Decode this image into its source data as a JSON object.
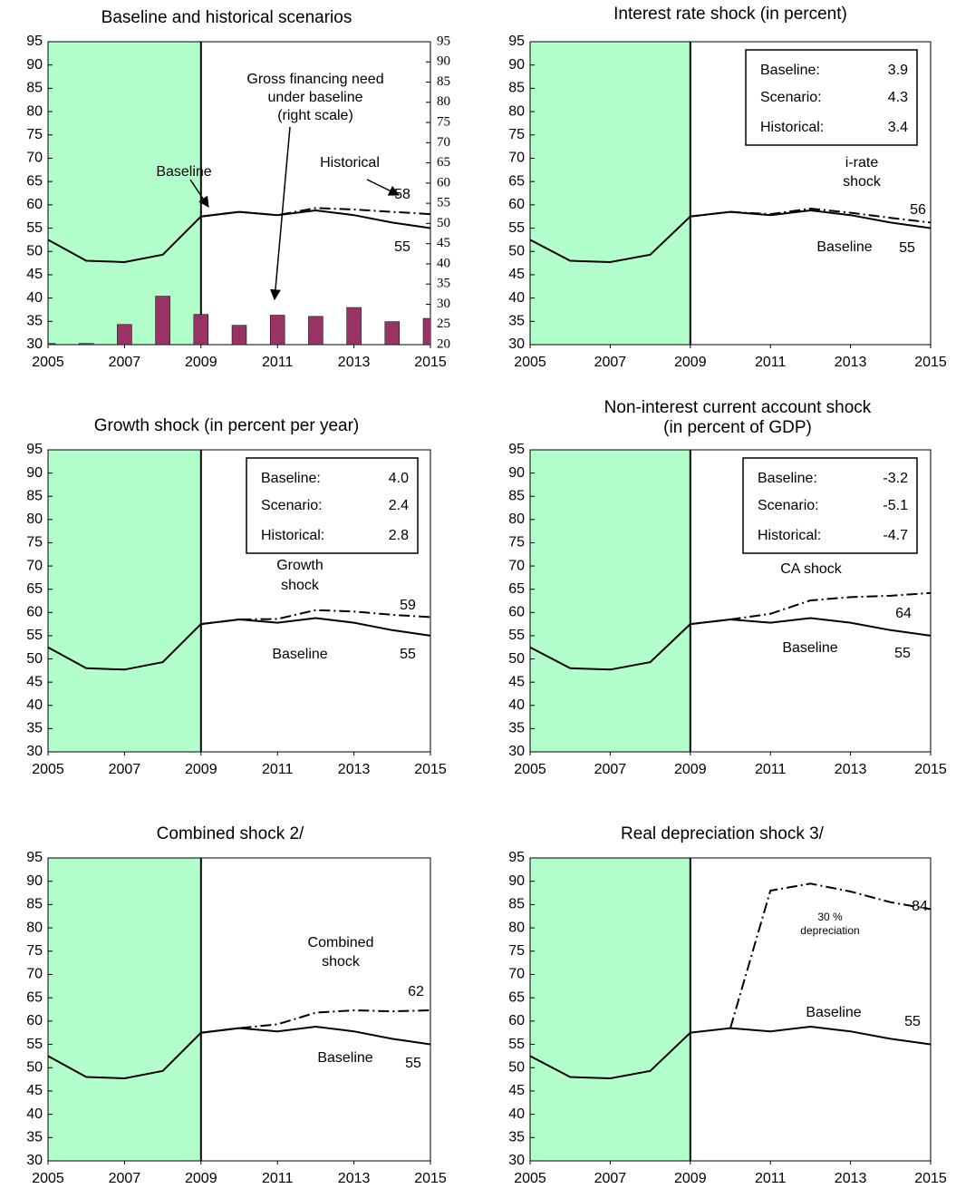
{
  "chart_data": [
    {
      "type": "line",
      "title": [
        "Baseline and historical scenarios"
      ],
      "x": [
        2005,
        2006,
        2007,
        2008,
        2009,
        2010,
        2011,
        2012,
        2013,
        2014,
        2015
      ],
      "xlim": [
        2005,
        2015
      ],
      "xticks": [
        2005,
        2007,
        2009,
        2011,
        2013,
        2015
      ],
      "ylim": [
        30,
        95
      ],
      "yticks": [
        30,
        35,
        40,
        45,
        50,
        55,
        60,
        65,
        70,
        75,
        80,
        85,
        90,
        95
      ],
      "y2lim": [
        20,
        95
      ],
      "y2ticks": [
        20,
        25,
        30,
        35,
        40,
        45,
        50,
        55,
        60,
        65,
        70,
        75,
        80,
        85,
        90,
        95
      ],
      "shaded_range": [
        2005,
        2009
      ],
      "shade_color": "#b3ffcc",
      "series": [
        {
          "type": "bar",
          "axis": "y2",
          "color": "#993366",
          "values": [
            20.3,
            20.3,
            25,
            32,
            27.5,
            24.8,
            27.3,
            27,
            29.2,
            25.7,
            26.5
          ]
        },
        {
          "color": "#000000",
          "style": "solid",
          "values": [
            52.5,
            48,
            47.7,
            49.3,
            57.5,
            58.5,
            57.8,
            58.8,
            57.8,
            56.2,
            55
          ]
        },
        {
          "color": "#000000",
          "style": "dashdot",
          "values": [
            null,
            null,
            null,
            null,
            57.5,
            58.5,
            57.8,
            59.3,
            59,
            58.5,
            58
          ]
        }
      ],
      "annotations": [
        "Baseline",
        "Historical",
        "Gross financing need",
        "under baseline",
        "(right scale)",
        "58",
        "55"
      ]
    },
    {
      "type": "line",
      "title": [
        "Interest rate shock (in percent)"
      ],
      "x": [
        2005,
        2006,
        2007,
        2008,
        2009,
        2010,
        2011,
        2012,
        2013,
        2014,
        2015
      ],
      "xlim": [
        2005,
        2015
      ],
      "xticks": [
        2005,
        2007,
        2009,
        2011,
        2013,
        2015
      ],
      "ylim": [
        30,
        95
      ],
      "yticks": [
        30,
        35,
        40,
        45,
        50,
        55,
        60,
        65,
        70,
        75,
        80,
        85,
        90,
        95
      ],
      "shaded_range": [
        2005,
        2009
      ],
      "shade_color": "#b3ffcc",
      "series": [
        {
          "color": "#000000",
          "style": "solid",
          "values": [
            52.5,
            48,
            47.7,
            49.3,
            57.5,
            58.5,
            57.8,
            58.8,
            57.8,
            56.2,
            55
          ]
        },
        {
          "color": "#000000",
          "style": "dashdot",
          "values": [
            null,
            null,
            null,
            null,
            57.5,
            58.5,
            58,
            59.2,
            58.3,
            57.2,
            56.2
          ]
        }
      ],
      "box": [
        {
          "label": "Baseline:",
          "value": "3.9"
        },
        {
          "label": "Scenario:",
          "value": "4.3"
        },
        {
          "label": "Historical:",
          "value": "3.4"
        }
      ],
      "annotations": [
        "i-rate",
        "shock",
        "56",
        "Baseline",
        "55"
      ]
    },
    {
      "type": "line",
      "title": [
        "Growth shock (in percent per year)"
      ],
      "x": [
        2005,
        2006,
        2007,
        2008,
        2009,
        2010,
        2011,
        2012,
        2013,
        2014,
        2015
      ],
      "xlim": [
        2005,
        2015
      ],
      "xticks": [
        2005,
        2007,
        2009,
        2011,
        2013,
        2015
      ],
      "ylim": [
        30,
        95
      ],
      "yticks": [
        30,
        35,
        40,
        45,
        50,
        55,
        60,
        65,
        70,
        75,
        80,
        85,
        90,
        95
      ],
      "shaded_range": [
        2005,
        2009
      ],
      "shade_color": "#b3ffcc",
      "series": [
        {
          "color": "#000000",
          "style": "solid",
          "values": [
            52.5,
            48,
            47.7,
            49.3,
            57.5,
            58.5,
            57.8,
            58.8,
            57.8,
            56.2,
            55
          ]
        },
        {
          "color": "#000000",
          "style": "dashdot",
          "values": [
            null,
            null,
            null,
            null,
            57.5,
            58.5,
            58.6,
            60.5,
            60.2,
            59.5,
            59
          ]
        }
      ],
      "box": [
        {
          "label": "Baseline:",
          "value": "4.0"
        },
        {
          "label": "Scenario:",
          "value": "2.4"
        },
        {
          "label": "Historical:",
          "value": "2.8"
        }
      ],
      "annotations": [
        "Growth",
        "shock",
        "59",
        "Baseline",
        "55"
      ]
    },
    {
      "type": "line",
      "title": [
        "Non-interest current account shock",
        "(in percent of GDP)"
      ],
      "x": [
        2005,
        2006,
        2007,
        2008,
        2009,
        2010,
        2011,
        2012,
        2013,
        2014,
        2015
      ],
      "xlim": [
        2005,
        2015
      ],
      "xticks": [
        2005,
        2007,
        2009,
        2011,
        2013,
        2015
      ],
      "ylim": [
        30,
        95
      ],
      "yticks": [
        30,
        35,
        40,
        45,
        50,
        55,
        60,
        65,
        70,
        75,
        80,
        85,
        90,
        95
      ],
      "shaded_range": [
        2005,
        2009
      ],
      "shade_color": "#b3ffcc",
      "series": [
        {
          "color": "#000000",
          "style": "solid",
          "values": [
            52.5,
            48,
            47.7,
            49.3,
            57.5,
            58.5,
            57.8,
            58.8,
            57.8,
            56.2,
            55
          ]
        },
        {
          "color": "#000000",
          "style": "dashdot",
          "values": [
            null,
            null,
            null,
            null,
            57.5,
            58.5,
            59.7,
            62.6,
            63.3,
            63.6,
            64.2
          ]
        }
      ],
      "box": [
        {
          "label": "Baseline:",
          "value": "-3.2"
        },
        {
          "label": "Scenario:",
          "value": "-5.1"
        },
        {
          "label": "Historical:",
          "value": "-4.7"
        }
      ],
      "annotations": [
        "CA shock",
        "64",
        "Baseline",
        "55"
      ]
    },
    {
      "type": "line",
      "title": [
        "Combined shock  2/"
      ],
      "x": [
        2005,
        2006,
        2007,
        2008,
        2009,
        2010,
        2011,
        2012,
        2013,
        2014,
        2015
      ],
      "xlim": [
        2005,
        2015
      ],
      "xticks": [
        2005,
        2007,
        2009,
        2011,
        2013,
        2015
      ],
      "ylim": [
        30,
        95
      ],
      "yticks": [
        30,
        35,
        40,
        45,
        50,
        55,
        60,
        65,
        70,
        75,
        80,
        85,
        90,
        95
      ],
      "shaded_range": [
        2005,
        2009
      ],
      "shade_color": "#b3ffcc",
      "series": [
        {
          "color": "#000000",
          "style": "solid",
          "values": [
            52.5,
            48,
            47.7,
            49.3,
            57.5,
            58.5,
            57.8,
            58.8,
            57.8,
            56.2,
            55
          ]
        },
        {
          "color": "#000000",
          "style": "dashdot",
          "values": [
            null,
            null,
            null,
            null,
            57.5,
            58.5,
            59.3,
            61.8,
            62.3,
            62.1,
            62.3
          ]
        }
      ],
      "annotations": [
        "Combined",
        "shock",
        "62",
        "Baseline",
        "55"
      ]
    },
    {
      "type": "line",
      "title": [
        "Real depreciation shock  3/"
      ],
      "x": [
        2005,
        2006,
        2007,
        2008,
        2009,
        2010,
        2011,
        2012,
        2013,
        2014,
        2015
      ],
      "xlim": [
        2005,
        2015
      ],
      "xticks": [
        2005,
        2007,
        2009,
        2011,
        2013,
        2015
      ],
      "ylim": [
        30,
        95
      ],
      "yticks": [
        30,
        35,
        40,
        45,
        50,
        55,
        60,
        65,
        70,
        75,
        80,
        85,
        90,
        95
      ],
      "shaded_range": [
        2005,
        2009
      ],
      "shade_color": "#b3ffcc",
      "series": [
        {
          "color": "#000000",
          "style": "solid",
          "values": [
            52.5,
            48,
            47.7,
            49.3,
            57.5,
            58.5,
            57.8,
            58.8,
            57.8,
            56.2,
            55
          ]
        },
        {
          "color": "#000000",
          "style": "dashdot",
          "values": [
            null,
            null,
            null,
            null,
            null,
            58.5,
            88,
            89.5,
            87.8,
            85.5,
            84
          ]
        }
      ],
      "annotations": [
        "30 %",
        "depreciation",
        "Baseline",
        "55",
        "84"
      ]
    }
  ]
}
